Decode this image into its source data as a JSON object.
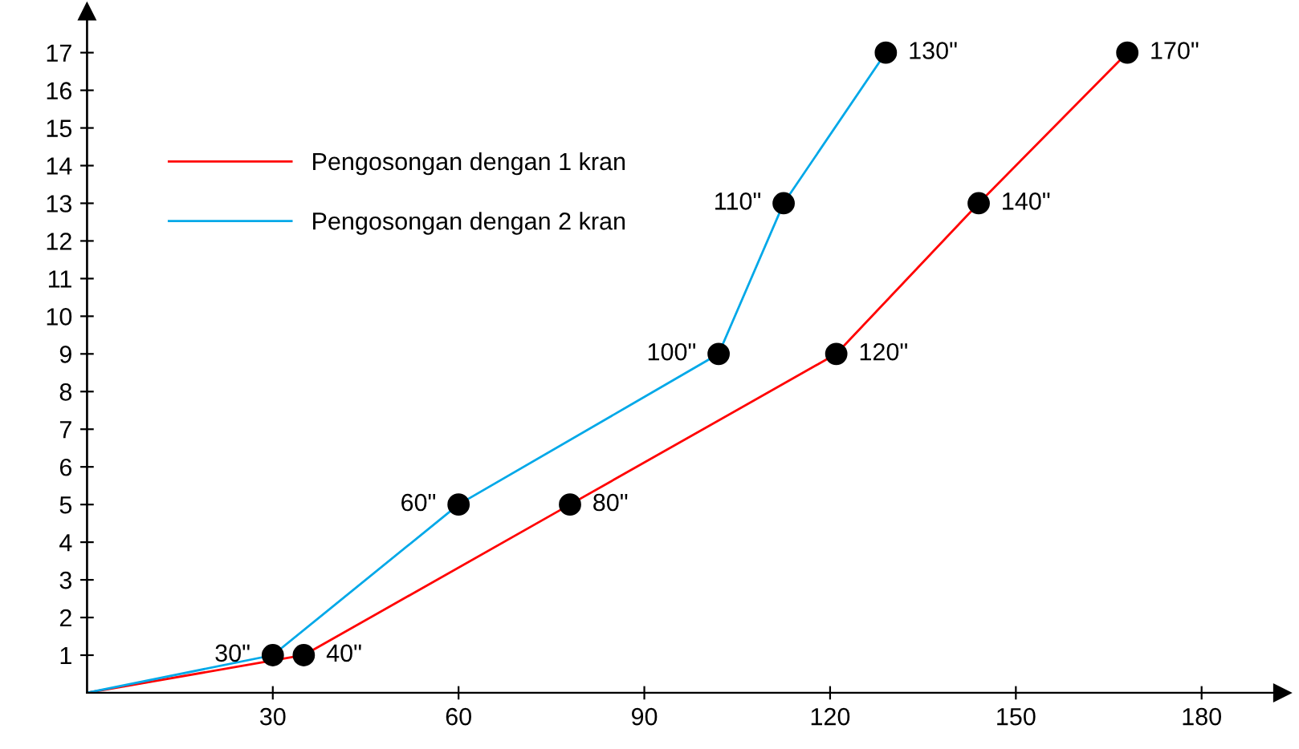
{
  "chart_data": {
    "type": "line",
    "series": [
      {
        "name": "Pengosongan dengan 1 kran",
        "color": "#ff0000",
        "x": [
          0,
          35,
          78,
          121,
          144,
          168
        ],
        "values": [
          0,
          1,
          5,
          9,
          13,
          17
        ]
      },
      {
        "name": "Pengosongan dengan 2 kran",
        "color": "#00a8e8",
        "x": [
          0,
          30,
          60,
          102,
          112.5,
          129
        ],
        "values": [
          0,
          1,
          5,
          9,
          13,
          17
        ]
      }
    ],
    "xlim": [
      0,
      193
    ],
    "ylim": [
      0,
      18
    ],
    "xticks": [
      30,
      60,
      90,
      120,
      150,
      180
    ],
    "yticks": [
      1,
      2,
      3,
      4,
      5,
      6,
      7,
      8,
      9,
      10,
      11,
      12,
      13,
      14,
      15,
      16,
      17
    ],
    "marker": "circle",
    "grid": false,
    "legend": "top left",
    "annotations": [
      {
        "text": "30\"",
        "x": 30,
        "y": 1
      },
      {
        "text": "40\"",
        "x": 35,
        "y": 1
      },
      {
        "text": "60\"",
        "x": 60,
        "y": 5
      },
      {
        "text": "80\"",
        "x": 78,
        "y": 5
      },
      {
        "text": "100\"",
        "x": 102,
        "y": 9
      },
      {
        "text": "120\"",
        "x": 121,
        "y": 9
      },
      {
        "text": "110\"",
        "x": 112.5,
        "y": 13
      },
      {
        "text": "140\"",
        "x": 144,
        "y": 13
      },
      {
        "text": "130\"",
        "x": 129,
        "y": 17
      },
      {
        "text": "170\"",
        "x": 168,
        "y": 17
      }
    ]
  }
}
